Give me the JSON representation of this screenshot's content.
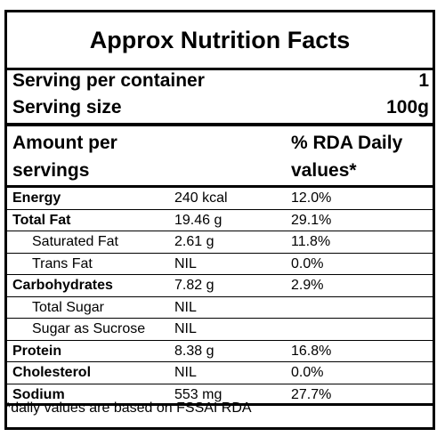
{
  "label": {
    "title": "Approx Nutrition Facts",
    "serving_per_container": {
      "label": "Serving per container",
      "value": "1"
    },
    "serving_size": {
      "label": "Serving size",
      "value": "100g"
    },
    "header": {
      "amount_line1": "Amount per",
      "amount_line2": "servings",
      "rda_line1": "% RDA Daily",
      "rda_line2": "values*"
    },
    "rows": [
      {
        "name": "Energy",
        "amount": "240 kcal",
        "rda": "12.0%"
      },
      {
        "name": "Total Fat",
        "amount": "19.46 g",
        "rda": "29.1%"
      },
      {
        "name": "Saturated Fat",
        "amount": "2.61 g",
        "rda": "11.8%"
      },
      {
        "name": "Trans Fat",
        "amount": "NIL",
        "rda": "0.0%"
      },
      {
        "name": "Carbohydrates",
        "amount": "7.82 g",
        "rda": "2.9%"
      },
      {
        "name": "Total Sugar",
        "amount": "NIL",
        "rda": ""
      },
      {
        "name": "Sugar as Sucrose",
        "amount": "NIL",
        "rda": ""
      },
      {
        "name": "Protein",
        "amount": "8.38 g",
        "rda": "16.8%"
      },
      {
        "name": "Cholesterol",
        "amount": "NIL",
        "rda": "0.0%"
      },
      {
        "name": "Sodium",
        "amount": "553 mg",
        "rda": "27.7%"
      }
    ],
    "footnote": "*daily values are based on FSSAI RDA"
  }
}
